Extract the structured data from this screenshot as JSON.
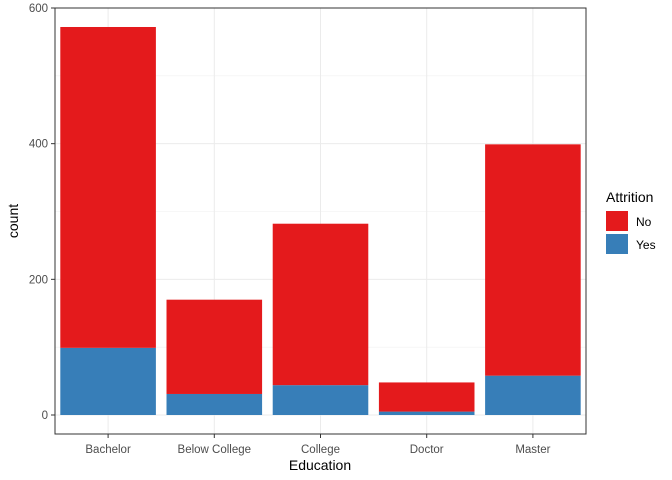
{
  "chart_data": {
    "type": "bar",
    "stacked": true,
    "xlabel": "Education",
    "ylabel": "count",
    "categories": [
      "Bachelor",
      "Below College",
      "College",
      "Doctor",
      "Master"
    ],
    "series": [
      {
        "name": "No",
        "color": "#E41A1C",
        "values": [
          473,
          139,
          238,
          43,
          341
        ]
      },
      {
        "name": "Yes",
        "color": "#377EB8",
        "values": [
          99,
          31,
          44,
          5,
          58
        ]
      }
    ],
    "ylim": [
      0,
      600
    ],
    "yticks": [
      0,
      200,
      400,
      600
    ],
    "legend": {
      "title": "Attrition",
      "position": "right"
    },
    "grid": true
  }
}
